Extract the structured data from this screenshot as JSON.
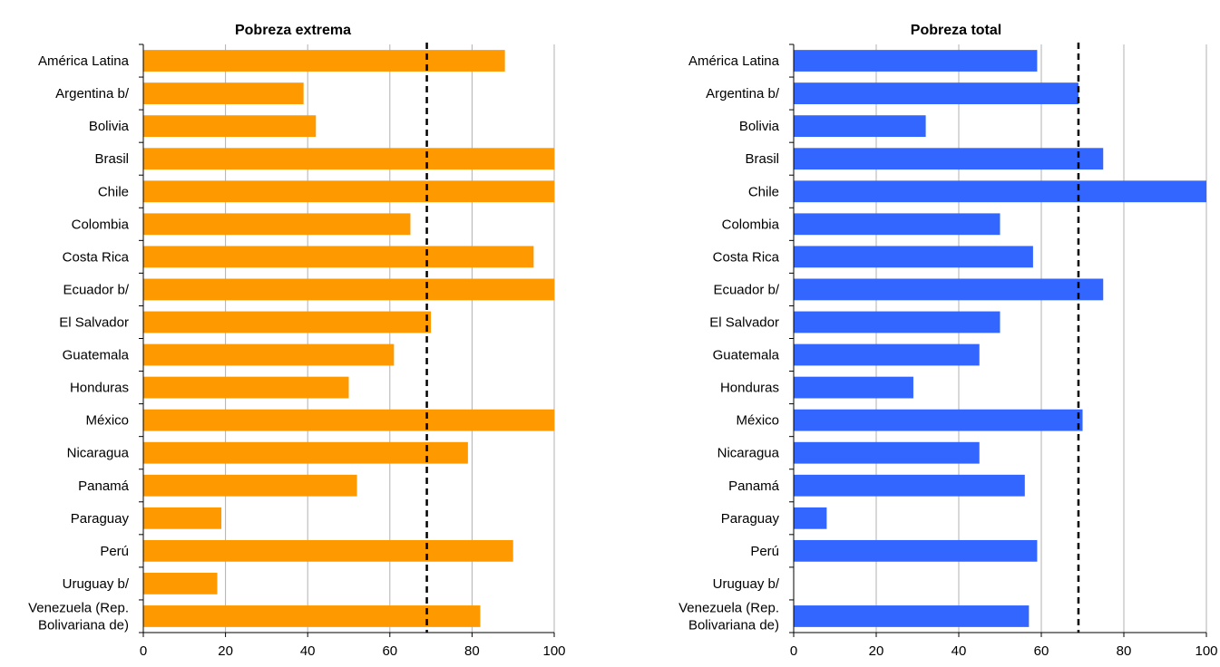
{
  "chart_data": [
    {
      "type": "bar",
      "orientation": "horizontal",
      "title": "Pobreza extrema",
      "categories": [
        [
          "América Latina"
        ],
        [
          "Argentina b/"
        ],
        [
          "Bolivia"
        ],
        [
          "Brasil"
        ],
        [
          "Chile"
        ],
        [
          "Colombia"
        ],
        [
          "Costa Rica"
        ],
        [
          "Ecuador b/"
        ],
        [
          "El Salvador"
        ],
        [
          "Guatemala"
        ],
        [
          "Honduras"
        ],
        [
          "México"
        ],
        [
          "Nicaragua"
        ],
        [
          "Panamá"
        ],
        [
          "Paraguay"
        ],
        [
          "Perú"
        ],
        [
          "Uruguay b/"
        ],
        [
          "Venezuela (Rep.",
          "Bolivariana de)"
        ]
      ],
      "values": [
        88,
        39,
        42,
        100,
        100,
        65,
        95,
        100,
        70,
        61,
        50,
        100,
        79,
        52,
        19,
        90,
        18,
        82
      ],
      "xlim": [
        0,
        100
      ],
      "xticks": [
        0,
        20,
        40,
        60,
        80,
        100
      ],
      "reference_line": 69,
      "grid": "vertical",
      "color": "#ff9900"
    },
    {
      "type": "bar",
      "orientation": "horizontal",
      "title": "Pobreza total",
      "categories": [
        [
          "América Latina"
        ],
        [
          "Argentina b/"
        ],
        [
          "Bolivia"
        ],
        [
          "Brasil"
        ],
        [
          "Chile"
        ],
        [
          "Colombia"
        ],
        [
          "Costa Rica"
        ],
        [
          "Ecuador b/"
        ],
        [
          "El Salvador"
        ],
        [
          "Guatemala"
        ],
        [
          "Honduras"
        ],
        [
          "México"
        ],
        [
          "Nicaragua"
        ],
        [
          "Panamá"
        ],
        [
          "Paraguay"
        ],
        [
          "Perú"
        ],
        [
          "Uruguay b/"
        ],
        [
          "Venezuela (Rep.",
          "Bolivariana de)"
        ]
      ],
      "values": [
        59,
        69,
        32,
        75,
        100,
        50,
        58,
        75,
        50,
        45,
        29,
        70,
        45,
        56,
        8,
        59,
        null,
        57
      ],
      "xlim": [
        0,
        100
      ],
      "xticks": [
        0,
        20,
        40,
        60,
        80,
        100
      ],
      "reference_line": 69,
      "grid": "vertical",
      "color": "#3366ff"
    }
  ]
}
